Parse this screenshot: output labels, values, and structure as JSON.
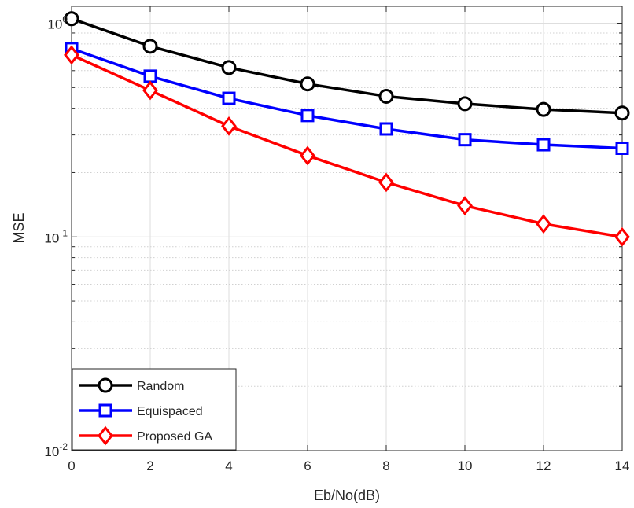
{
  "chart_data": {
    "type": "line",
    "title": "",
    "xlabel": "Eb/No(dB)",
    "ylabel": "MSE",
    "y_scale": "log",
    "xlim": [
      0,
      14
    ],
    "ylim": [
      0.01,
      1.2
    ],
    "grid": true,
    "legend_position": "bottom-left",
    "x": [
      0,
      2,
      4,
      6,
      8,
      10,
      12,
      14
    ],
    "x_tick_labels": [
      "0",
      "2",
      "4",
      "6",
      "8",
      "10",
      "12",
      "14"
    ],
    "y_ticks": [
      {
        "value": 1,
        "base": "10",
        "exp": "0"
      },
      {
        "value": 0.1,
        "base": "10",
        "exp": "-1"
      },
      {
        "value": 0.01,
        "base": "10",
        "exp": "-2"
      }
    ],
    "series": [
      {
        "name": "Random",
        "color": "#000000",
        "marker": "circle",
        "values": [
          1.05,
          0.78,
          0.62,
          0.52,
          0.455,
          0.42,
          0.395,
          0.38
        ]
      },
      {
        "name": "Equispaced",
        "color": "#0000FF",
        "marker": "square",
        "values": [
          0.76,
          0.565,
          0.445,
          0.37,
          0.32,
          0.285,
          0.27,
          0.26
        ]
      },
      {
        "name": "Proposed GA",
        "color": "#FF0000",
        "marker": "diamond",
        "values": [
          0.71,
          0.485,
          0.33,
          0.24,
          0.18,
          0.14,
          0.115,
          0.1
        ]
      }
    ]
  }
}
